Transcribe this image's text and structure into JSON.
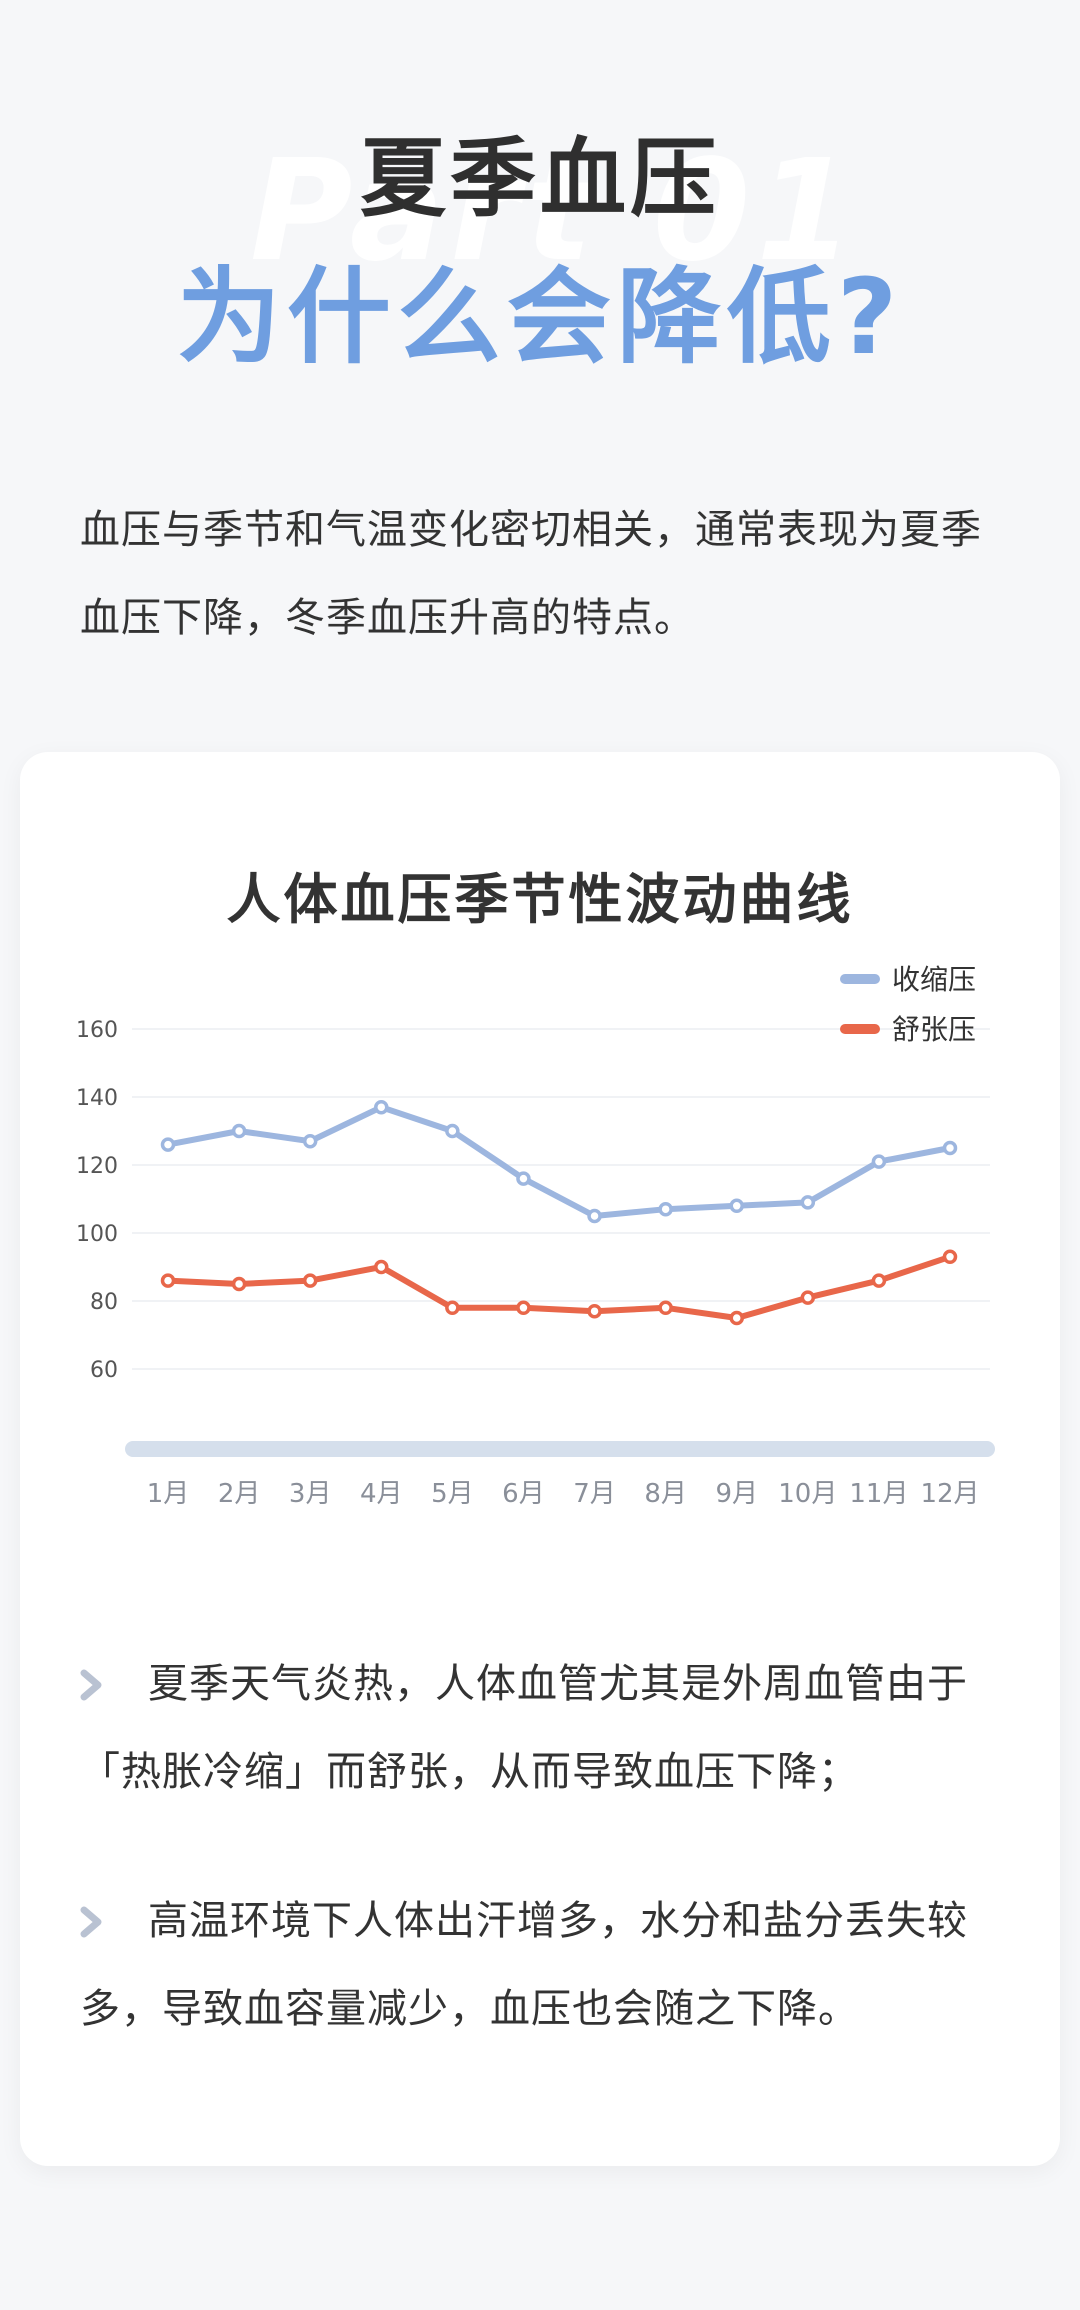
{
  "header": {
    "watermark": "Part 01",
    "title_line1": "夏季血压",
    "title_line2": "为什么会降低?"
  },
  "intro": "血压与季节和气温变化密切相关，通常表现为夏季血压下降，冬季血压升高的特点。",
  "chart_data": {
    "type": "line",
    "title": "人体血压季节性波动曲线",
    "categories": [
      "1月",
      "2月",
      "3月",
      "4月",
      "5月",
      "6月",
      "7月",
      "8月",
      "9月",
      "10月",
      "11月",
      "12月"
    ],
    "yticks": [
      160,
      140,
      120,
      100,
      80,
      60
    ],
    "ylim": [
      40,
      160
    ],
    "grid": true,
    "legend_position": "top-right",
    "series": [
      {
        "name": "收缩压",
        "color": "#9db6df",
        "values": [
          126,
          130,
          127,
          137,
          130,
          116,
          105,
          107,
          108,
          109,
          121,
          125
        ]
      },
      {
        "name": "舒张压",
        "color": "#e8674a",
        "values": [
          86,
          85,
          86,
          90,
          78,
          78,
          77,
          78,
          75,
          81,
          86,
          93
        ]
      }
    ]
  },
  "bullets": [
    "夏季天气炎热，人体血管尤其是外周血管由于「热胀冷缩」而舒张，从而导致血压下降；",
    "高温环境下人体出汗增多，水分和盐分丢失较多，导致血容量减少，血压也会随之下降。"
  ],
  "colors": {
    "accent": "#6f9ee0",
    "title": "#2f2f2f",
    "bullet_arrow": "#b9c2d2"
  }
}
